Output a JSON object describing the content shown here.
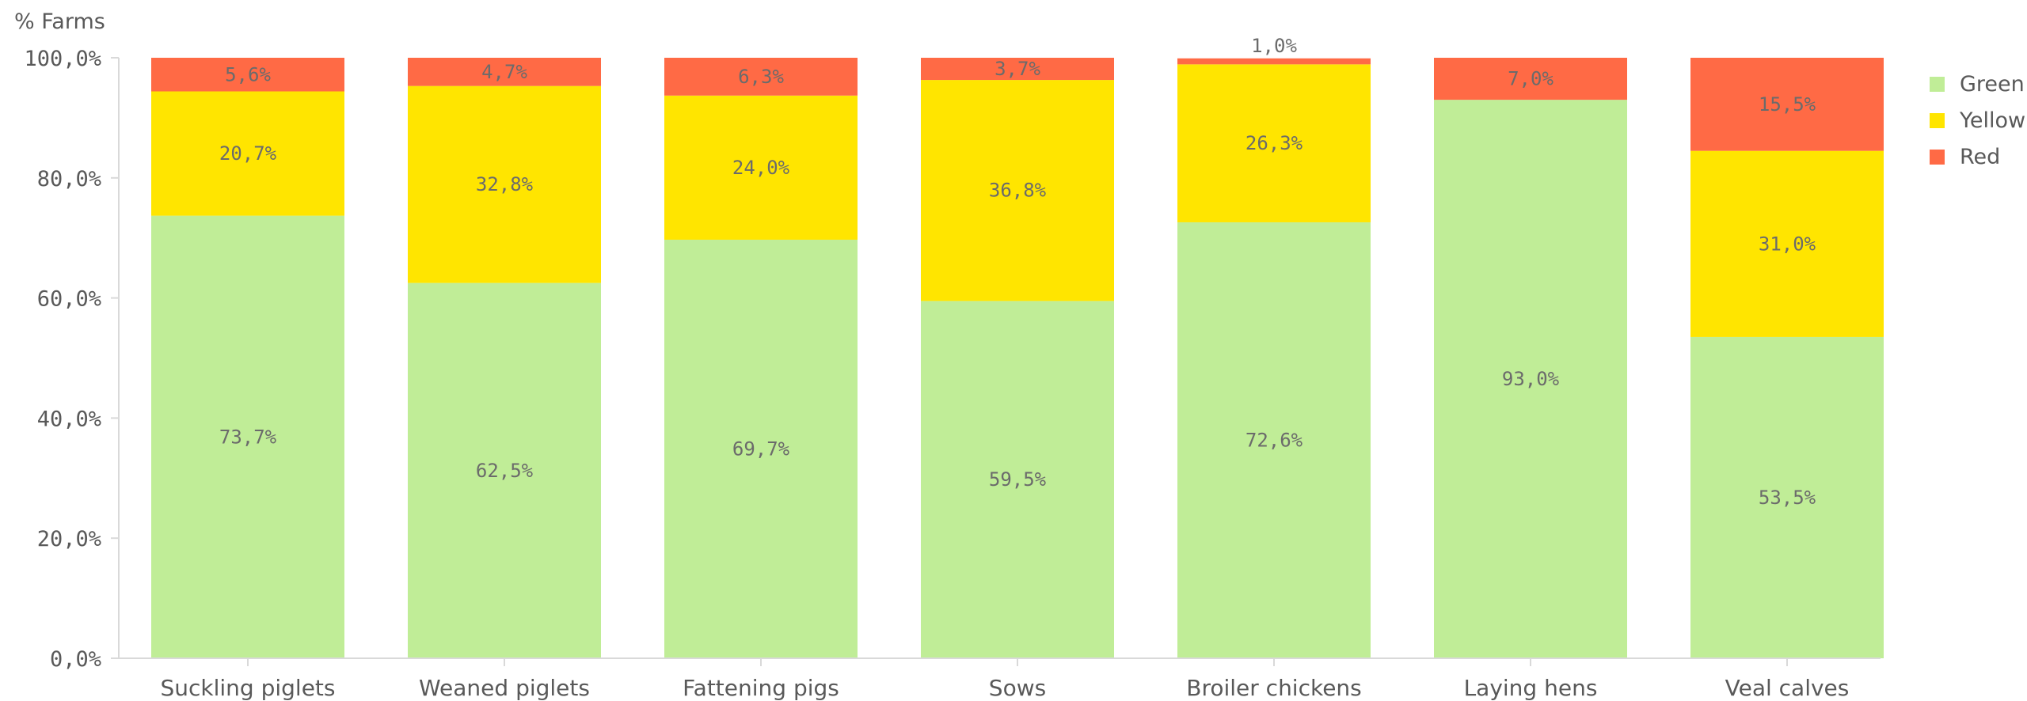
{
  "chart_data": {
    "type": "bar",
    "stacked": true,
    "ylabel": "% Farms",
    "ylim": [
      0,
      100
    ],
    "yticks": [
      "0,0%",
      "20,0%",
      "40,0%",
      "60,0%",
      "80,0%",
      "100,0%"
    ],
    "categories": [
      "Suckling piglets",
      "Weaned piglets",
      "Fattening pigs",
      "Sows",
      "Broiler chickens",
      "Laying hens",
      "Veal calves"
    ],
    "series": [
      {
        "name": "Green",
        "color": "#c0ed97",
        "values": [
          73.7,
          62.5,
          69.7,
          59.5,
          72.6,
          93.0,
          53.5
        ],
        "labels": [
          "73,7%",
          "62,5%",
          "69,7%",
          "59,5%",
          "72,6%",
          "93,0%",
          "53,5%"
        ]
      },
      {
        "name": "Yellow",
        "color": "#ffe500",
        "values": [
          20.7,
          32.8,
          24.0,
          36.8,
          26.3,
          0,
          31.0
        ],
        "labels": [
          "20,7%",
          "32,8%",
          "24,0%",
          "36,8%",
          "26,3%",
          "",
          "31,0%"
        ]
      },
      {
        "name": "Red",
        "color": "#ff6a45",
        "values": [
          5.6,
          4.7,
          6.3,
          3.7,
          1.0,
          7.0,
          15.5
        ],
        "labels": [
          "5,6%",
          "4,7%",
          "6,3%",
          "3,7%",
          "1,0%",
          "7,0%",
          "15,5%"
        ]
      }
    ],
    "grid": false,
    "legend_position": "right"
  }
}
